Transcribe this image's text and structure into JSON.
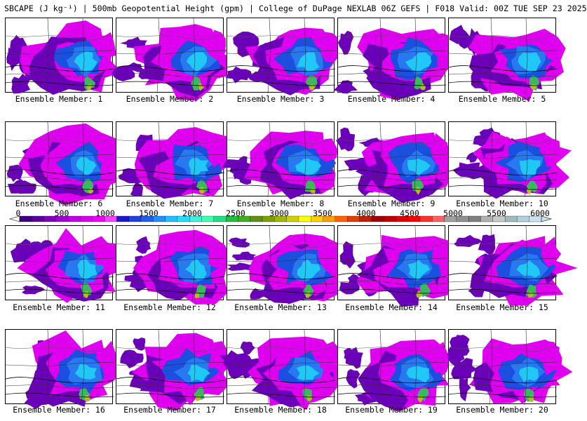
{
  "title": "SBCAPE (J kg⁻¹) | 500mb Geopotential Height (gpm) | College of DuPage NEXLAB 06Z GEFS | F018 Valid: 00Z TUE SEP 23 2025",
  "colorbar": {
    "tick_labels": [
      "0",
      "500",
      "1000",
      "1500",
      "2000",
      "2500",
      "3000",
      "3500",
      "4000",
      "4500",
      "5000",
      "5500",
      "6000"
    ],
    "colors": [
      "#3c0080",
      "#5a00a0",
      "#8000c0",
      "#a000d8",
      "#c000e8",
      "#d800f0",
      "#f000f8",
      "#ff40ff",
      "#1a1acc",
      "#2040e0",
      "#2060f0",
      "#2090f8",
      "#20c0ff",
      "#20e0ff",
      "#40f0e0",
      "#40ffb0",
      "#20e080",
      "#20c040",
      "#40b020",
      "#609010",
      "#80a000",
      "#a0b800",
      "#d0d000",
      "#ffff00",
      "#ffd000",
      "#ffa000",
      "#ff6000",
      "#e04000",
      "#c02000",
      "#a00000",
      "#c00000",
      "#e00000",
      "#ff0000",
      "#ff3030",
      "#ff6060",
      "#a0a0a0",
      "#909090",
      "#808080",
      "#b0b0b0",
      "#c8c8c8",
      "#a0b8c0",
      "#b0d0e0",
      "#c8e0f0"
    ]
  },
  "members": [
    {
      "label": "Ensemble Member: 1"
    },
    {
      "label": "Ensemble Member: 2"
    },
    {
      "label": "Ensemble Member: 3"
    },
    {
      "label": "Ensemble Member: 4"
    },
    {
      "label": "Ensemble Member: 5"
    },
    {
      "label": "Ensemble Member: 6"
    },
    {
      "label": "Ensemble Member: 7"
    },
    {
      "label": "Ensemble Member: 8"
    },
    {
      "label": "Ensemble Member: 9"
    },
    {
      "label": "Ensemble Member: 10"
    },
    {
      "label": "Ensemble Member: 11"
    },
    {
      "label": "Ensemble Member: 12"
    },
    {
      "label": "Ensemble Member: 13"
    },
    {
      "label": "Ensemble Member: 14"
    },
    {
      "label": "Ensemble Member: 15"
    },
    {
      "label": "Ensemble Member: 16"
    },
    {
      "label": "Ensemble Member: 17"
    },
    {
      "label": "Ensemble Member: 18"
    },
    {
      "label": "Ensemble Member: 19"
    },
    {
      "label": "Ensemble Member: 20"
    }
  ],
  "field_colors": {
    "low": "#6a00b8",
    "mid": "#e000f0",
    "blue": "#1a4fe0",
    "cyan": "#20c8f8",
    "green": "#3ab860",
    "yellow": "#b0c020"
  }
}
